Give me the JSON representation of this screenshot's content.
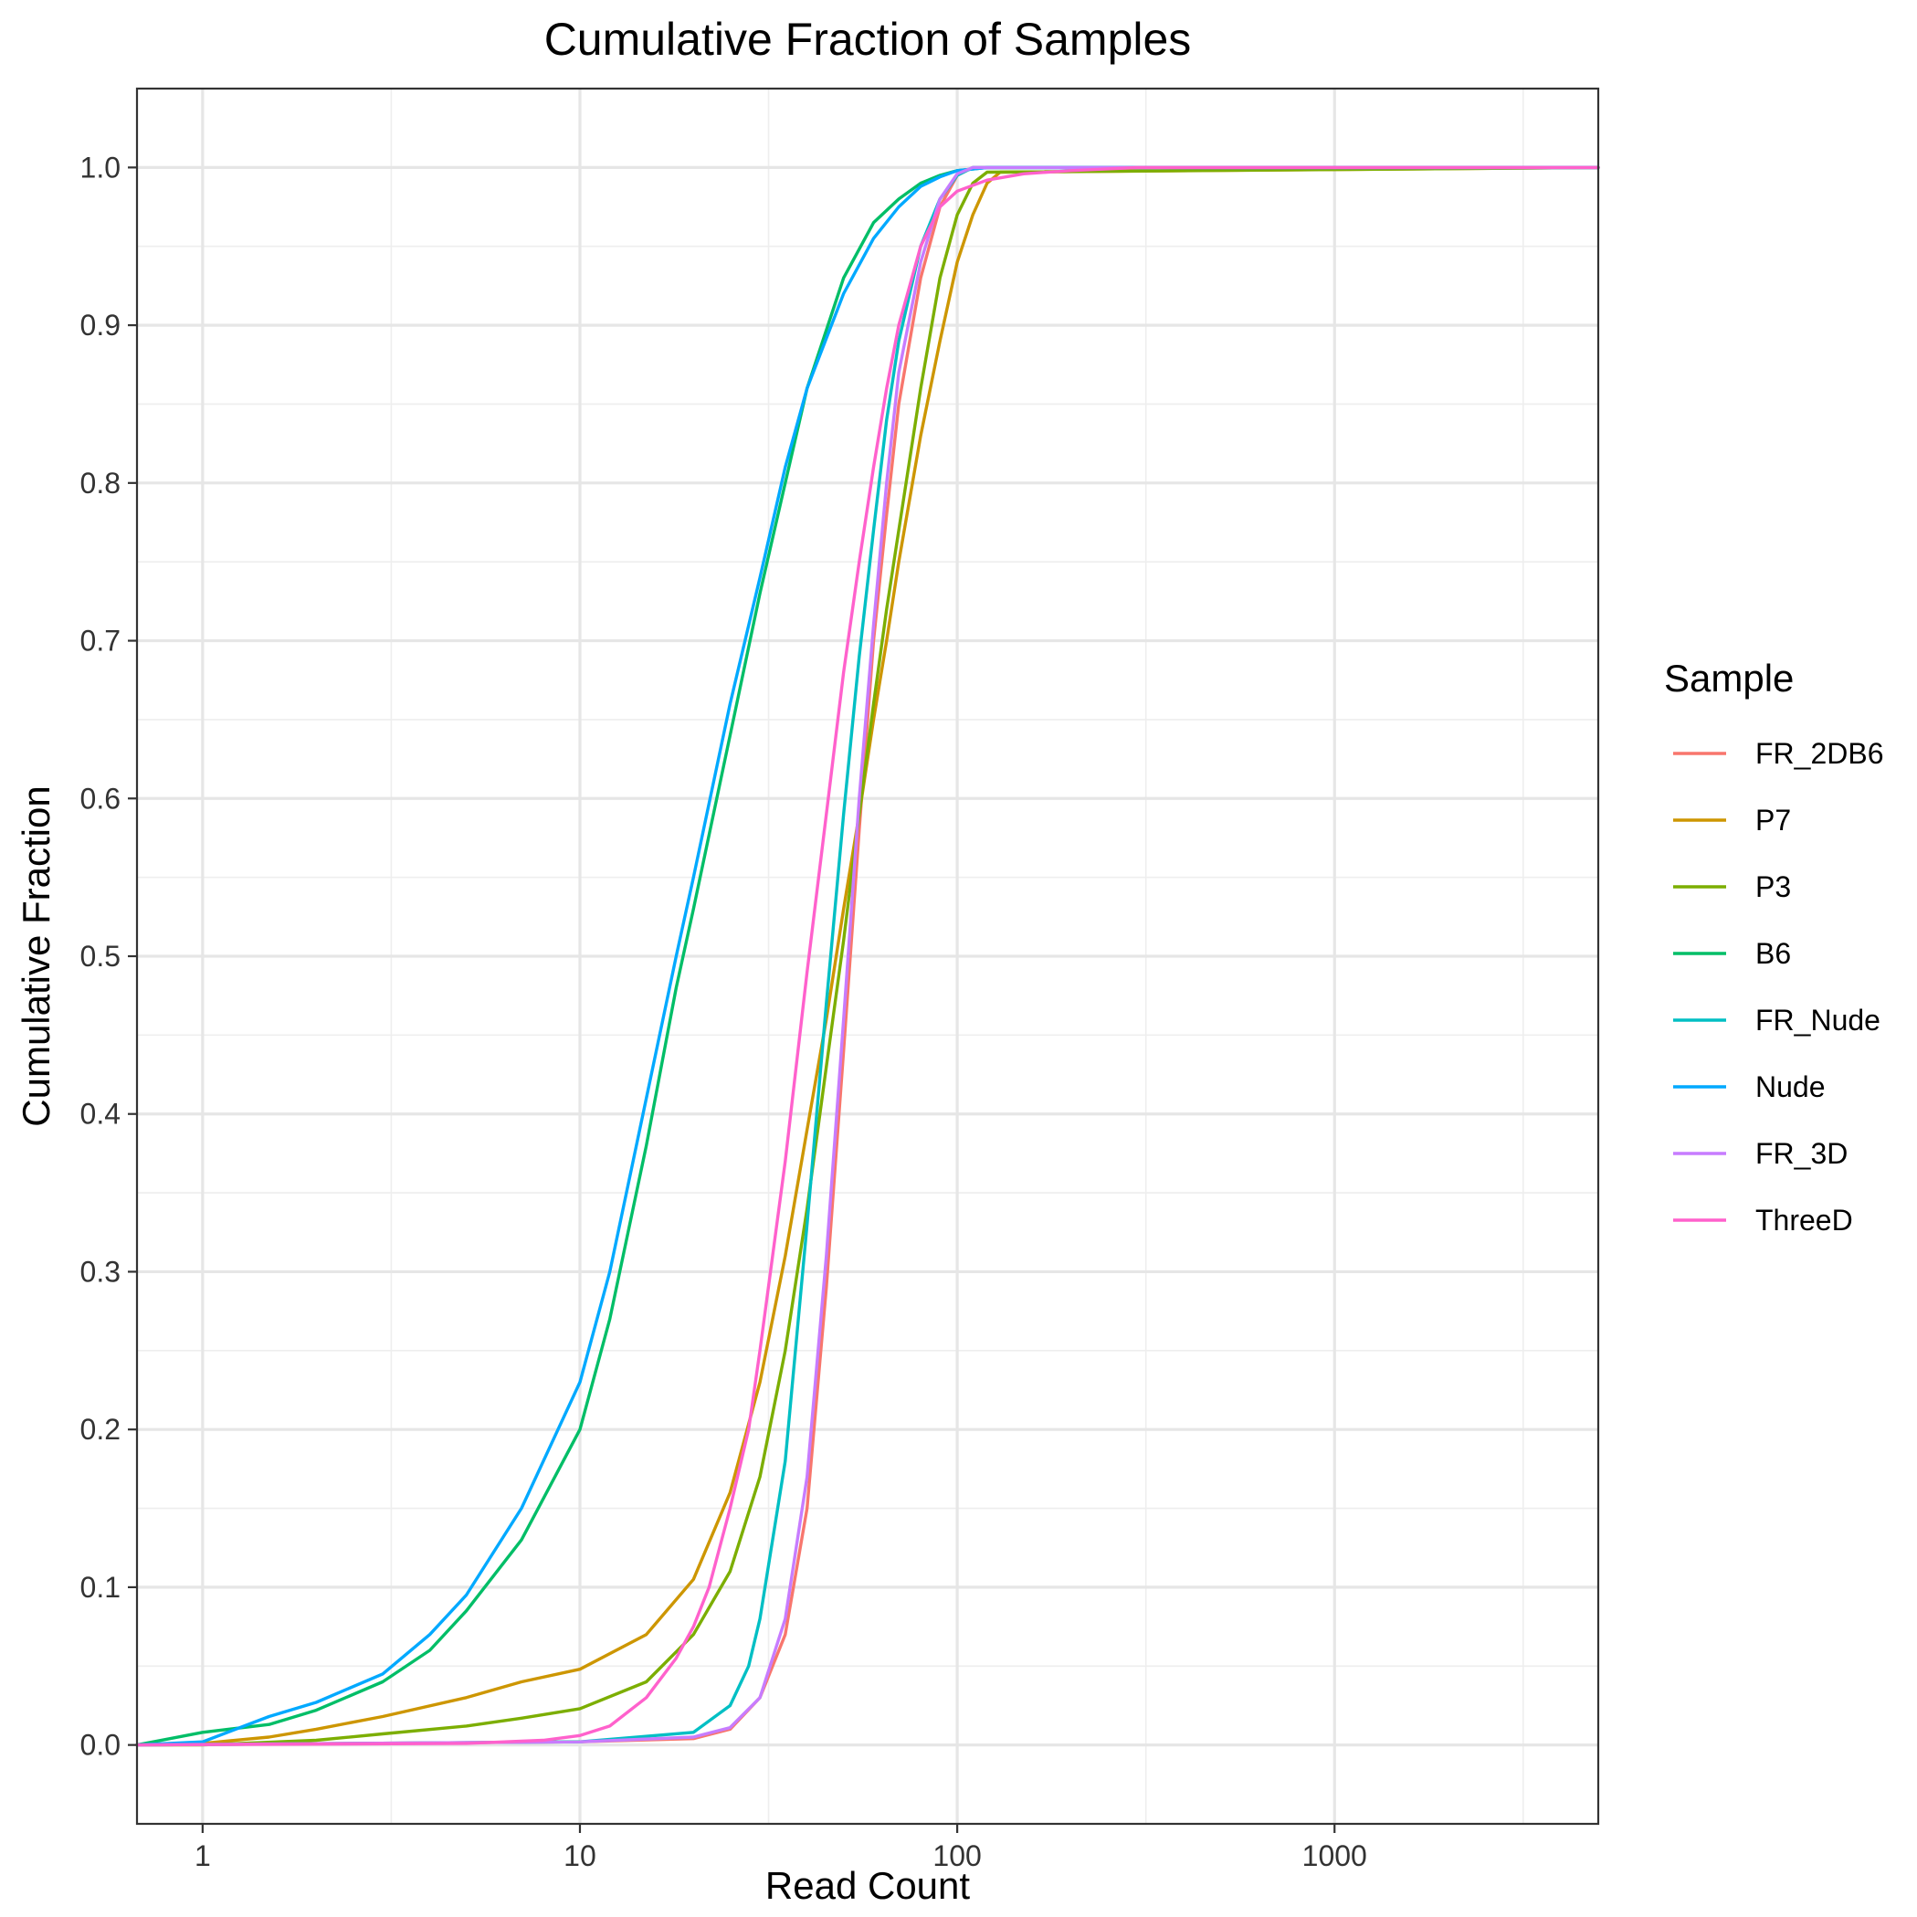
{
  "chart_data": {
    "type": "line",
    "title": "Cumulative Fraction of Samples",
    "xlabel": "Read Count",
    "ylabel": "Cumulative Fraction",
    "x_scale": "log10",
    "xlim": [
      0.67,
      5000
    ],
    "ylim": [
      -0.05,
      1.05
    ],
    "x_ticks": [
      1,
      10,
      100,
      1000
    ],
    "x_tick_labels": [
      "1",
      "10",
      "100",
      "1000"
    ],
    "y_ticks": [
      0,
      0.1,
      0.2,
      0.3,
      0.4,
      0.5,
      0.6,
      0.7,
      0.8,
      0.9,
      1.0
    ],
    "y_tick_labels": [
      "0.0",
      "0.1",
      "0.2",
      "0.3",
      "0.4",
      "0.5",
      "0.6",
      "0.7",
      "0.8",
      "0.9",
      "1.0"
    ],
    "grid": true,
    "legend_title": "Sample",
    "legend_position": "right",
    "series": [
      {
        "name": "FR_2DB6",
        "color": "#F8766D",
        "x": [
          0.67,
          10,
          20,
          25,
          30,
          35,
          40,
          45,
          50,
          55,
          60,
          65,
          70,
          80,
          90,
          100,
          110,
          5000
        ],
        "y": [
          0,
          0.002,
          0.004,
          0.01,
          0.03,
          0.07,
          0.15,
          0.29,
          0.44,
          0.58,
          0.7,
          0.78,
          0.85,
          0.93,
          0.975,
          0.995,
          1.0,
          1.0
        ]
      },
      {
        "name": "P7",
        "color": "#CD9600",
        "x": [
          0.67,
          1,
          1.5,
          2,
          3,
          5,
          7,
          10,
          15,
          20,
          25,
          30,
          35,
          40,
          45,
          50,
          55,
          60,
          65,
          70,
          80,
          90,
          100,
          110,
          120,
          130,
          5000
        ],
        "y": [
          0,
          0.001,
          0.005,
          0.01,
          0.018,
          0.03,
          0.04,
          0.048,
          0.07,
          0.105,
          0.16,
          0.23,
          0.31,
          0.39,
          0.46,
          0.53,
          0.59,
          0.65,
          0.7,
          0.75,
          0.83,
          0.89,
          0.94,
          0.97,
          0.99,
          0.997,
          1.0
        ]
      },
      {
        "name": "P3",
        "color": "#7CAE00",
        "x": [
          0.67,
          1,
          2,
          3,
          5,
          7,
          10,
          15,
          20,
          25,
          30,
          35,
          40,
          45,
          50,
          55,
          60,
          65,
          70,
          80,
          90,
          100,
          110,
          120,
          5000
        ],
        "y": [
          0,
          0.0,
          0.003,
          0.007,
          0.012,
          0.017,
          0.023,
          0.04,
          0.07,
          0.11,
          0.17,
          0.25,
          0.34,
          0.43,
          0.51,
          0.59,
          0.66,
          0.72,
          0.77,
          0.86,
          0.93,
          0.97,
          0.99,
          0.997,
          1.0
        ]
      },
      {
        "name": "B6",
        "color": "#00BE67",
        "x": [
          0.67,
          1,
          1.5,
          2,
          3,
          4,
          5,
          7,
          10,
          12,
          15,
          18,
          20,
          25,
          30,
          35,
          40,
          50,
          60,
          70,
          80,
          90,
          100,
          120,
          5000
        ],
        "y": [
          0,
          0.008,
          0.013,
          0.022,
          0.04,
          0.06,
          0.085,
          0.13,
          0.2,
          0.27,
          0.38,
          0.48,
          0.53,
          0.64,
          0.73,
          0.8,
          0.86,
          0.93,
          0.965,
          0.98,
          0.99,
          0.995,
          0.998,
          1.0,
          1.0
        ]
      },
      {
        "name": "FR_Nude",
        "color": "#00BFC4",
        "x": [
          0.67,
          10,
          20,
          25,
          28,
          30,
          35,
          40,
          45,
          50,
          55,
          60,
          65,
          70,
          80,
          90,
          100,
          110,
          5000
        ],
        "y": [
          0,
          0.002,
          0.008,
          0.025,
          0.05,
          0.08,
          0.18,
          0.33,
          0.47,
          0.59,
          0.69,
          0.77,
          0.84,
          0.89,
          0.95,
          0.98,
          0.995,
          1.0,
          1.0
        ]
      },
      {
        "name": "Nude",
        "color": "#00A9FF",
        "x": [
          0.67,
          1,
          1.5,
          2,
          3,
          4,
          5,
          7,
          10,
          12,
          15,
          18,
          20,
          25,
          30,
          35,
          40,
          50,
          60,
          70,
          80,
          90,
          100,
          120,
          5000
        ],
        "y": [
          0,
          0.002,
          0.018,
          0.027,
          0.045,
          0.07,
          0.095,
          0.15,
          0.23,
          0.3,
          0.41,
          0.5,
          0.55,
          0.66,
          0.74,
          0.81,
          0.86,
          0.92,
          0.955,
          0.975,
          0.988,
          0.994,
          0.998,
          1.0,
          1.0
        ]
      },
      {
        "name": "FR_3D",
        "color": "#C77CFF",
        "x": [
          0.67,
          10,
          20,
          25,
          30,
          35,
          40,
          45,
          50,
          55,
          60,
          65,
          70,
          80,
          90,
          100,
          110,
          5000
        ],
        "y": [
          0,
          0.002,
          0.005,
          0.011,
          0.03,
          0.08,
          0.17,
          0.31,
          0.46,
          0.6,
          0.71,
          0.8,
          0.87,
          0.94,
          0.98,
          0.996,
          1.0,
          1.0
        ]
      },
      {
        "name": "ThreeD",
        "color": "#FF61CC",
        "x": [
          0.67,
          5,
          8,
          10,
          12,
          15,
          18,
          20,
          22,
          25,
          28,
          30,
          35,
          40,
          45,
          50,
          55,
          60,
          65,
          70,
          80,
          90,
          100,
          120,
          150,
          200,
          300,
          5000
        ],
        "y": [
          0,
          0.001,
          0.003,
          0.006,
          0.012,
          0.03,
          0.055,
          0.075,
          0.1,
          0.15,
          0.2,
          0.25,
          0.37,
          0.49,
          0.59,
          0.68,
          0.75,
          0.81,
          0.86,
          0.9,
          0.95,
          0.975,
          0.985,
          0.992,
          0.996,
          0.998,
          1.0,
          1.0
        ]
      }
    ]
  }
}
